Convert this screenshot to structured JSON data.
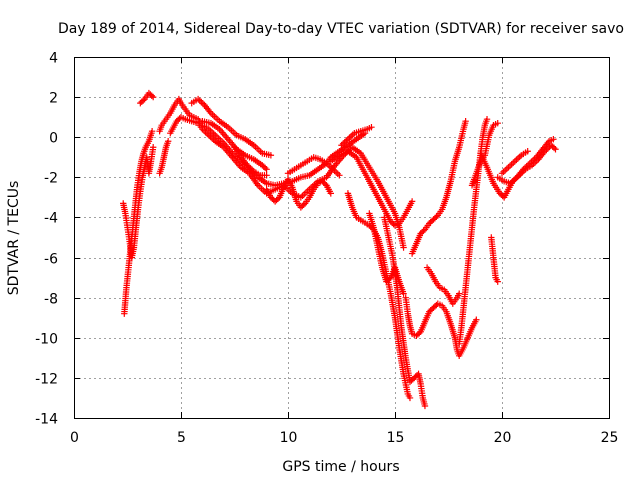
{
  "chart_data": {
    "type": "scatter",
    "title": "Day 189 of 2014, Sidereal Day-to-day VTEC variation (SDTVAR) for receiver savo",
    "xlabel": "GPS time / hours",
    "ylabel": "SDTVAR / TECUs",
    "xlim": [
      0,
      25
    ],
    "ylim": [
      -14,
      4
    ],
    "xticks": [
      0,
      5,
      10,
      15,
      20,
      25
    ],
    "yticks": [
      -14,
      -12,
      -10,
      -8,
      -6,
      -4,
      -2,
      0,
      2,
      4
    ],
    "grid": true,
    "marker": "plus",
    "color": "#ff0000",
    "segments": [
      [
        [
          2.35,
          -8.8
        ],
        [
          2.45,
          -7.5
        ],
        [
          2.55,
          -6.5
        ],
        [
          2.65,
          -5.5
        ],
        [
          2.75,
          -4.5
        ],
        [
          2.85,
          -3.5
        ],
        [
          2.95,
          -2.5
        ],
        [
          3.05,
          -1.8
        ],
        [
          3.15,
          -1.2
        ],
        [
          3.25,
          -0.8
        ],
        [
          3.35,
          -0.5
        ],
        [
          3.5,
          -0.2
        ],
        [
          3.65,
          0.3
        ]
      ],
      [
        [
          2.3,
          -3.3
        ],
        [
          2.4,
          -3.8
        ],
        [
          2.5,
          -4.5
        ],
        [
          2.6,
          -5.2
        ],
        [
          2.7,
          -6.0
        ],
        [
          2.8,
          -5.5
        ],
        [
          2.9,
          -4.5
        ],
        [
          3.0,
          -3.5
        ],
        [
          3.1,
          -2.7
        ],
        [
          3.2,
          -2.0
        ],
        [
          3.3,
          -1.5
        ],
        [
          3.4,
          -1.0
        ],
        [
          3.5,
          -1.8
        ],
        [
          3.6,
          -1.2
        ],
        [
          3.7,
          -0.5
        ]
      ],
      [
        [
          3.1,
          1.7
        ],
        [
          3.3,
          1.9
        ],
        [
          3.5,
          2.2
        ],
        [
          3.7,
          2.0
        ]
      ],
      [
        [
          4.0,
          -1.8
        ],
        [
          4.1,
          -1.5
        ],
        [
          4.2,
          -1.0
        ],
        [
          4.3,
          -0.5
        ],
        [
          4.4,
          -0.2
        ]
      ],
      [
        [
          4.0,
          0.3
        ],
        [
          4.1,
          0.6
        ],
        [
          4.3,
          0.9
        ],
        [
          4.5,
          1.2
        ],
        [
          4.7,
          1.6
        ],
        [
          4.9,
          1.9
        ],
        [
          5.0,
          1.7
        ],
        [
          5.2,
          1.4
        ],
        [
          5.4,
          1.1
        ],
        [
          5.6,
          1.0
        ],
        [
          5.8,
          0.9
        ],
        [
          6.0,
          0.6
        ],
        [
          6.3,
          0.4
        ],
        [
          6.6,
          0.1
        ],
        [
          7.0,
          -0.3
        ],
        [
          7.4,
          -0.8
        ],
        [
          7.8,
          -1.2
        ],
        [
          8.2,
          -1.6
        ],
        [
          8.6,
          -2.0
        ],
        [
          9.0,
          -2.3
        ],
        [
          9.4,
          -2.4
        ],
        [
          9.8,
          -2.3
        ],
        [
          10.2,
          -2.2
        ],
        [
          10.6,
          -2.0
        ],
        [
          11.0,
          -1.9
        ],
        [
          11.4,
          -1.6
        ],
        [
          11.8,
          -1.3
        ],
        [
          12.0,
          -1.0
        ],
        [
          12.4,
          -0.7
        ],
        [
          12.8,
          -0.4
        ],
        [
          13.2,
          -0.1
        ],
        [
          13.6,
          0.2
        ]
      ],
      [
        [
          4.5,
          0.2
        ],
        [
          4.8,
          0.8
        ],
        [
          5.0,
          1.0
        ],
        [
          5.2,
          0.9
        ],
        [
          5.5,
          0.8
        ],
        [
          5.8,
          0.7
        ],
        [
          6.0,
          0.4
        ],
        [
          6.3,
          0.1
        ],
        [
          6.6,
          -0.2
        ],
        [
          7.0,
          -0.5
        ],
        [
          7.4,
          -1.0
        ],
        [
          7.8,
          -1.5
        ],
        [
          8.2,
          -1.8
        ],
        [
          8.6,
          -2.4
        ],
        [
          9.0,
          -2.8
        ],
        [
          9.4,
          -2.6
        ],
        [
          9.8,
          -2.4
        ],
        [
          10.2,
          -2.8
        ],
        [
          10.6,
          -3.0
        ],
        [
          11.0,
          -2.6
        ],
        [
          11.4,
          -2.2
        ],
        [
          11.8,
          -2.0
        ],
        [
          12.2,
          -1.4
        ],
        [
          12.6,
          -0.9
        ],
        [
          13.0,
          -0.5
        ],
        [
          13.4,
          -0.8
        ],
        [
          13.8,
          -1.5
        ],
        [
          14.2,
          -2.2
        ],
        [
          14.6,
          -3.0
        ],
        [
          15.0,
          -3.8
        ],
        [
          15.2,
          -4.5
        ],
        [
          15.4,
          -5.5
        ]
      ],
      [
        [
          5.5,
          1.7
        ],
        [
          5.8,
          1.9
        ],
        [
          6.1,
          1.6
        ],
        [
          6.4,
          1.2
        ],
        [
          6.8,
          0.8
        ],
        [
          7.2,
          0.5
        ],
        [
          7.6,
          0.1
        ],
        [
          8.0,
          -0.1
        ],
        [
          8.4,
          -0.4
        ],
        [
          8.8,
          -0.8
        ],
        [
          9.2,
          -0.9
        ]
      ],
      [
        [
          6.0,
          0.8
        ],
        [
          6.4,
          0.7
        ],
        [
          6.8,
          0.4
        ],
        [
          7.2,
          -0.1
        ],
        [
          7.6,
          -0.6
        ],
        [
          8.0,
          -0.9
        ],
        [
          8.4,
          -1.1
        ],
        [
          8.8,
          -1.4
        ],
        [
          9.0,
          -1.6
        ]
      ],
      [
        [
          7.5,
          -0.5
        ],
        [
          7.8,
          -1.0
        ],
        [
          8.1,
          -1.4
        ],
        [
          8.4,
          -1.7
        ],
        [
          8.7,
          -1.9
        ],
        [
          9.0,
          -1.9
        ]
      ],
      [
        [
          9.0,
          -2.6
        ],
        [
          9.2,
          -3.0
        ],
        [
          9.4,
          -3.2
        ],
        [
          9.6,
          -3.0
        ],
        [
          9.8,
          -2.5
        ],
        [
          10.0,
          -2.1
        ],
        [
          10.2,
          -2.5
        ],
        [
          10.4,
          -3.2
        ],
        [
          10.6,
          -3.5
        ],
        [
          10.8,
          -3.3
        ],
        [
          11.0,
          -3.0
        ],
        [
          11.2,
          -2.6
        ],
        [
          11.4,
          -2.3
        ],
        [
          11.6,
          -2.2
        ],
        [
          11.8,
          -2.4
        ],
        [
          12.0,
          -2.8
        ]
      ],
      [
        [
          10.0,
          -1.8
        ],
        [
          10.3,
          -1.6
        ],
        [
          10.6,
          -1.4
        ],
        [
          10.9,
          -1.2
        ],
        [
          11.2,
          -1.0
        ],
        [
          11.5,
          -1.1
        ],
        [
          11.8,
          -1.3
        ],
        [
          12.1,
          -1.6
        ],
        [
          12.4,
          -1.9
        ]
      ],
      [
        [
          12.0,
          -1.2
        ],
        [
          12.4,
          -0.9
        ],
        [
          12.8,
          -0.7
        ],
        [
          13.2,
          -1.0
        ],
        [
          13.6,
          -1.8
        ],
        [
          14.0,
          -2.6
        ],
        [
          14.4,
          -3.4
        ],
        [
          14.8,
          -4.2
        ],
        [
          15.0,
          -4.4
        ],
        [
          15.2,
          -4.3
        ],
        [
          15.4,
          -4.0
        ],
        [
          15.6,
          -3.6
        ],
        [
          15.8,
          -3.2
        ]
      ],
      [
        [
          12.5,
          -0.4
        ],
        [
          12.8,
          -0.1
        ],
        [
          13.1,
          0.2
        ],
        [
          13.4,
          0.3
        ],
        [
          13.7,
          0.4
        ],
        [
          13.9,
          0.5
        ]
      ],
      [
        [
          12.8,
          -2.8
        ],
        [
          13.0,
          -3.5
        ],
        [
          13.2,
          -4.0
        ],
        [
          13.5,
          -4.2
        ],
        [
          13.8,
          -4.4
        ],
        [
          14.0,
          -4.6
        ],
        [
          14.2,
          -5.0
        ],
        [
          14.4,
          -5.8
        ],
        [
          14.6,
          -6.8
        ],
        [
          14.8,
          -7.8
        ],
        [
          15.0,
          -9.0
        ],
        [
          15.2,
          -10.5
        ],
        [
          15.4,
          -11.8
        ],
        [
          15.6,
          -12.8
        ],
        [
          15.7,
          -13.0
        ]
      ],
      [
        [
          13.8,
          -3.8
        ],
        [
          14.0,
          -4.5
        ],
        [
          14.2,
          -5.5
        ],
        [
          14.4,
          -6.5
        ],
        [
          14.6,
          -7.2
        ],
        [
          14.8,
          -7.0
        ],
        [
          15.0,
          -6.5
        ],
        [
          15.2,
          -7.2
        ],
        [
          15.4,
          -7.8
        ]
      ],
      [
        [
          14.5,
          -4.0
        ],
        [
          14.7,
          -5.0
        ],
        [
          14.9,
          -6.0
        ],
        [
          15.1,
          -7.5
        ],
        [
          15.3,
          -9.5
        ],
        [
          15.5,
          -11.0
        ],
        [
          15.7,
          -12.2
        ],
        [
          15.9,
          -12.0
        ],
        [
          16.1,
          -11.8
        ],
        [
          16.2,
          -12.3
        ],
        [
          16.3,
          -13.0
        ],
        [
          16.4,
          -13.4
        ]
      ],
      [
        [
          15.5,
          -8.0
        ],
        [
          15.6,
          -8.8
        ],
        [
          15.7,
          -9.4
        ],
        [
          15.8,
          -9.8
        ],
        [
          16.0,
          -9.9
        ],
        [
          16.2,
          -9.7
        ],
        [
          16.4,
          -9.2
        ],
        [
          16.6,
          -8.7
        ],
        [
          16.8,
          -8.5
        ],
        [
          17.0,
          -8.3
        ],
        [
          17.2,
          -8.4
        ],
        [
          17.4,
          -8.7
        ],
        [
          17.6,
          -9.3
        ],
        [
          17.8,
          -10.0
        ],
        [
          17.9,
          -10.6
        ],
        [
          18.0,
          -10.9
        ],
        [
          18.2,
          -10.5
        ],
        [
          18.4,
          -10.0
        ],
        [
          18.6,
          -9.5
        ],
        [
          18.8,
          -9.1
        ]
      ],
      [
        [
          15.8,
          -5.8
        ],
        [
          16.0,
          -5.3
        ],
        [
          16.2,
          -4.8
        ],
        [
          16.4,
          -4.6
        ],
        [
          16.6,
          -4.3
        ],
        [
          16.8,
          -4.1
        ],
        [
          17.0,
          -3.9
        ],
        [
          17.2,
          -3.6
        ],
        [
          17.4,
          -3.0
        ],
        [
          17.6,
          -2.2
        ],
        [
          17.8,
          -1.2
        ],
        [
          18.0,
          -0.5
        ],
        [
          18.2,
          0.4
        ],
        [
          18.3,
          0.8
        ]
      ],
      [
        [
          16.5,
          -6.5
        ],
        [
          16.7,
          -6.8
        ],
        [
          16.9,
          -7.2
        ],
        [
          17.1,
          -7.5
        ],
        [
          17.3,
          -7.6
        ],
        [
          17.5,
          -7.9
        ],
        [
          17.7,
          -8.3
        ],
        [
          17.9,
          -8.0
        ],
        [
          18.0,
          -7.8
        ]
      ],
      [
        [
          18.0,
          -10.3
        ],
        [
          18.1,
          -9.5
        ],
        [
          18.2,
          -8.5
        ],
        [
          18.3,
          -7.5
        ],
        [
          18.4,
          -6.5
        ],
        [
          18.5,
          -5.5
        ],
        [
          18.6,
          -4.5
        ],
        [
          18.7,
          -3.5
        ],
        [
          18.8,
          -2.6
        ],
        [
          18.9,
          -1.7
        ],
        [
          19.0,
          -0.8
        ],
        [
          19.1,
          0.0
        ],
        [
          19.2,
          0.6
        ],
        [
          19.3,
          0.9
        ]
      ],
      [
        [
          18.6,
          -2.4
        ],
        [
          18.8,
          -1.8
        ],
        [
          19.0,
          -1.2
        ],
        [
          19.2,
          -0.9
        ],
        [
          19.4,
          0.1
        ],
        [
          19.6,
          0.6
        ],
        [
          19.8,
          0.7
        ]
      ],
      [
        [
          19.5,
          -5.0
        ],
        [
          19.6,
          -6.0
        ],
        [
          19.7,
          -7.0
        ],
        [
          19.8,
          -7.2
        ]
      ],
      [
        [
          19.0,
          -0.8
        ],
        [
          19.3,
          -1.5
        ],
        [
          19.6,
          -2.3
        ],
        [
          19.9,
          -2.8
        ],
        [
          20.1,
          -3.0
        ],
        [
          20.3,
          -2.6
        ],
        [
          20.5,
          -2.2
        ],
        [
          20.8,
          -1.9
        ],
        [
          21.1,
          -1.6
        ],
        [
          21.4,
          -1.4
        ],
        [
          21.7,
          -1.1
        ],
        [
          22.0,
          -0.7
        ],
        [
          22.3,
          -0.4
        ],
        [
          22.5,
          -0.6
        ]
      ],
      [
        [
          19.8,
          -2.0
        ],
        [
          20.1,
          -2.2
        ],
        [
          20.4,
          -2.3
        ],
        [
          20.7,
          -2.0
        ],
        [
          21.0,
          -1.6
        ],
        [
          21.3,
          -1.3
        ],
        [
          21.6,
          -1.0
        ],
        [
          21.9,
          -0.6
        ],
        [
          22.2,
          -0.2
        ],
        [
          22.4,
          -0.1
        ]
      ],
      [
        [
          20.0,
          -1.8
        ],
        [
          20.3,
          -1.5
        ],
        [
          20.6,
          -1.2
        ],
        [
          20.9,
          -0.9
        ],
        [
          21.2,
          -0.7
        ]
      ]
    ]
  }
}
